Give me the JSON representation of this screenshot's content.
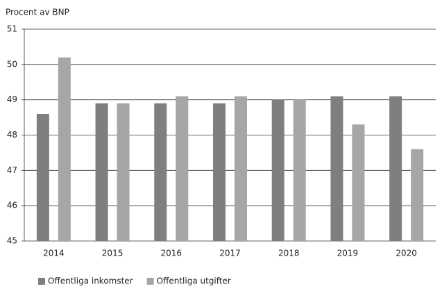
{
  "chart_data": {
    "type": "bar",
    "title": "Procent av BNP",
    "categories": [
      "2014",
      "2015",
      "2016",
      "2017",
      "2018",
      "2019",
      "2020"
    ],
    "series": [
      {
        "name": "Offentliga inkomster",
        "color": "#7f7f7f",
        "values": [
          48.6,
          48.9,
          48.9,
          48.9,
          49.0,
          49.1,
          49.1
        ]
      },
      {
        "name": "Offentliga utgifter",
        "color": "#a6a6a6",
        "values": [
          50.2,
          48.9,
          49.1,
          49.1,
          49.0,
          48.3,
          47.6
        ]
      }
    ],
    "ylim": [
      45,
      51
    ],
    "yticks": [
      45,
      46,
      47,
      48,
      49,
      50,
      51
    ],
    "grid": true,
    "legend": "bottom"
  }
}
